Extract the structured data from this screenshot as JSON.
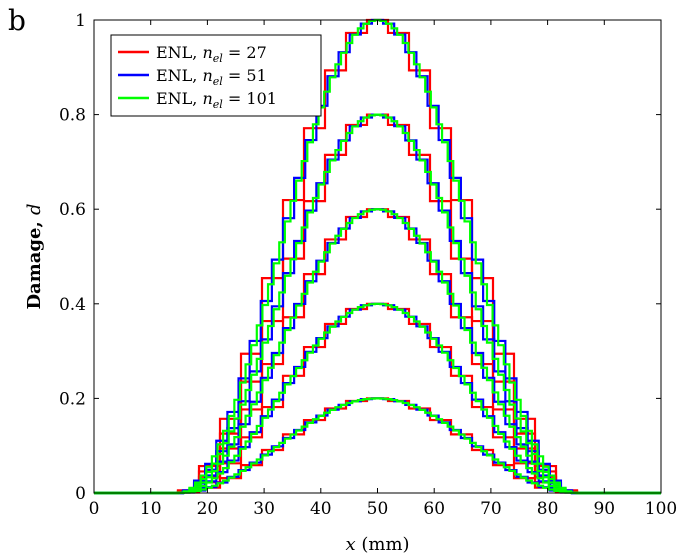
{
  "panel_label": "b",
  "chart_data": {
    "type": "line",
    "title": "",
    "xlabel_symbol": "x",
    "xlabel_unit": " (mm)",
    "ylabel_main": "Damage, ",
    "ylabel_symbol": "d",
    "xlim": [
      0,
      100
    ],
    "ylim": [
      0,
      1
    ],
    "xticks": [
      0,
      10,
      20,
      30,
      40,
      50,
      60,
      70,
      80,
      90,
      100
    ],
    "yticks": [
      0,
      0.2,
      0.4,
      0.6,
      0.8,
      1
    ],
    "ytick_labels": [
      "0",
      "0.2",
      "0.4",
      "0.6",
      "0.8",
      "1"
    ],
    "grid": false,
    "legend_position": "top-left",
    "profiles": {
      "count": 5,
      "peaks": [
        0.2,
        0.4,
        0.6,
        0.8,
        1.0
      ],
      "center": 50,
      "half_width": 35
    },
    "series": [
      {
        "name": "ENL, n_el = 27",
        "legend_prefix": "ENL, ",
        "legend_math": "n",
        "legend_sub": "el",
        "legend_value": " = 27",
        "elements": 27,
        "color": "#ff0000"
      },
      {
        "name": "ENL, n_el = 51",
        "legend_prefix": "ENL, ",
        "legend_math": "n",
        "legend_sub": "el",
        "legend_value": " = 51",
        "elements": 51,
        "color": "#0000ff"
      },
      {
        "name": "ENL, n_el = 101",
        "legend_prefix": "ENL, ",
        "legend_math": "n",
        "legend_sub": "el",
        "legend_value": " = 101",
        "elements": 101,
        "color": "#00ff00"
      }
    ]
  }
}
